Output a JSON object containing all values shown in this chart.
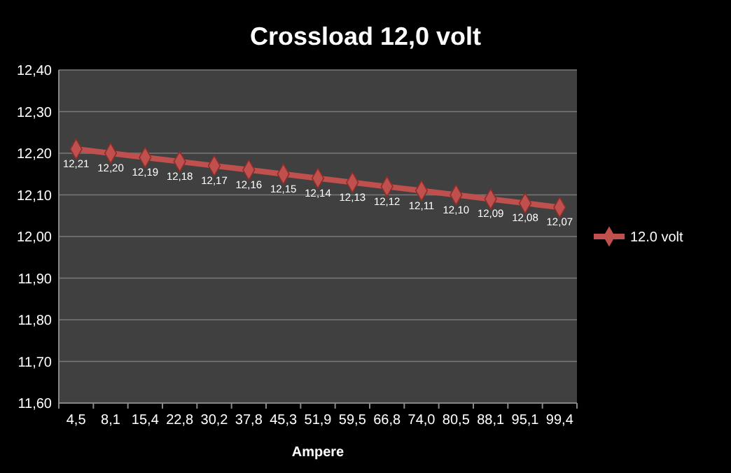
{
  "chart_data": {
    "type": "line",
    "title": "Crossload 12,0 volt",
    "xlabel": "Ampere",
    "categories": [
      "4,5",
      "8,1",
      "15,4",
      "22,8",
      "30,2",
      "37,8",
      "45,3",
      "51,9",
      "59,5",
      "66,8",
      "74,0",
      "80,5",
      "88,1",
      "95,1",
      "99,4"
    ],
    "series": [
      {
        "name": "12.0 volt",
        "color": "#c0504d",
        "values": [
          12.21,
          12.2,
          12.19,
          12.18,
          12.17,
          12.16,
          12.15,
          12.14,
          12.13,
          12.12,
          12.11,
          12.1,
          12.09,
          12.08,
          12.07
        ],
        "value_labels": [
          "12,21",
          "12,20",
          "12,19",
          "12,18",
          "12,17",
          "12,16",
          "12,15",
          "12,14",
          "12,13",
          "12,12",
          "12,11",
          "12,10",
          "12,09",
          "12,08",
          "12,07"
        ]
      }
    ],
    "ylim": [
      11.6,
      12.4
    ],
    "yticks": [
      {
        "value": 11.6,
        "label": "11,60"
      },
      {
        "value": 11.7,
        "label": "11,70"
      },
      {
        "value": 11.8,
        "label": "11,80"
      },
      {
        "value": 11.9,
        "label": "11,90"
      },
      {
        "value": 12.0,
        "label": "12,00"
      },
      {
        "value": 12.1,
        "label": "12,10"
      },
      {
        "value": 12.2,
        "label": "12,20"
      },
      {
        "value": 12.3,
        "label": "12,30"
      },
      {
        "value": 12.4,
        "label": "12,40"
      }
    ],
    "grid": "y",
    "legend": "right",
    "marker": "diamond",
    "line_style": "solid"
  }
}
